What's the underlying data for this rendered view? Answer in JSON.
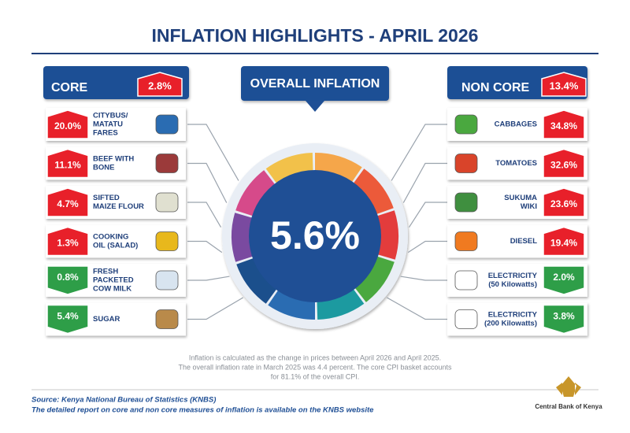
{
  "title": "INFLATION HIGHLIGHTS - APRIL 2026",
  "overall": {
    "label": "OVERALL INFLATION",
    "value": "5.6%"
  },
  "core": {
    "label": "CORE",
    "value": "2.8%",
    "trend": "up",
    "items": [
      {
        "lines": [
          "CITYBUS/",
          "MATATU",
          "FARES"
        ],
        "value": "20.0%",
        "trend": "up"
      },
      {
        "lines": [
          "BEEF WITH",
          "BONE"
        ],
        "value": "11.1%",
        "trend": "up"
      },
      {
        "lines": [
          "SIFTED",
          "MAIZE FLOUR"
        ],
        "value": "4.7%",
        "trend": "up"
      },
      {
        "lines": [
          "COOKING",
          "OIL (SALAD)"
        ],
        "value": "1.3%",
        "trend": "up"
      },
      {
        "lines": [
          "FRESH",
          "PACKETED",
          "COW MILK"
        ],
        "value": "0.8%",
        "trend": "down"
      },
      {
        "lines": [
          "SUGAR"
        ],
        "value": "5.4%",
        "trend": "down"
      }
    ]
  },
  "non_core": {
    "label": "NON CORE",
    "value": "13.4%",
    "trend": "up",
    "items": [
      {
        "lines": [
          "CABBAGES"
        ],
        "value": "34.8%",
        "trend": "up"
      },
      {
        "lines": [
          "TOMATOES"
        ],
        "value": "32.6%",
        "trend": "up"
      },
      {
        "lines": [
          "SUKUMA",
          "WIKI"
        ],
        "value": "23.6%",
        "trend": "up"
      },
      {
        "lines": [
          "DIESEL"
        ],
        "value": "19.4%",
        "trend": "up"
      },
      {
        "lines": [
          "ELECTRICITY",
          "(50 Kilowatts)"
        ],
        "value": "2.0%",
        "trend": "down"
      },
      {
        "lines": [
          "ELECTRICITY",
          "(200 Kilowatts)"
        ],
        "value": "3.8%",
        "trend": "down"
      }
    ]
  },
  "note": [
    "Inflation is calculated as the change in prices between April 2026 and April 2025.",
    "The overall inflation rate in March 2025 was 4.4 percent. The core CPI basket accounts",
    "for 81.1% of the overall CPI."
  ],
  "source": [
    "Source: Kenya National Bureau of Statistics (KNBS)",
    "The detailed report on core and non core measures of inflation is available on the KNBS website"
  ],
  "logo": "Central Bank of Kenya"
}
